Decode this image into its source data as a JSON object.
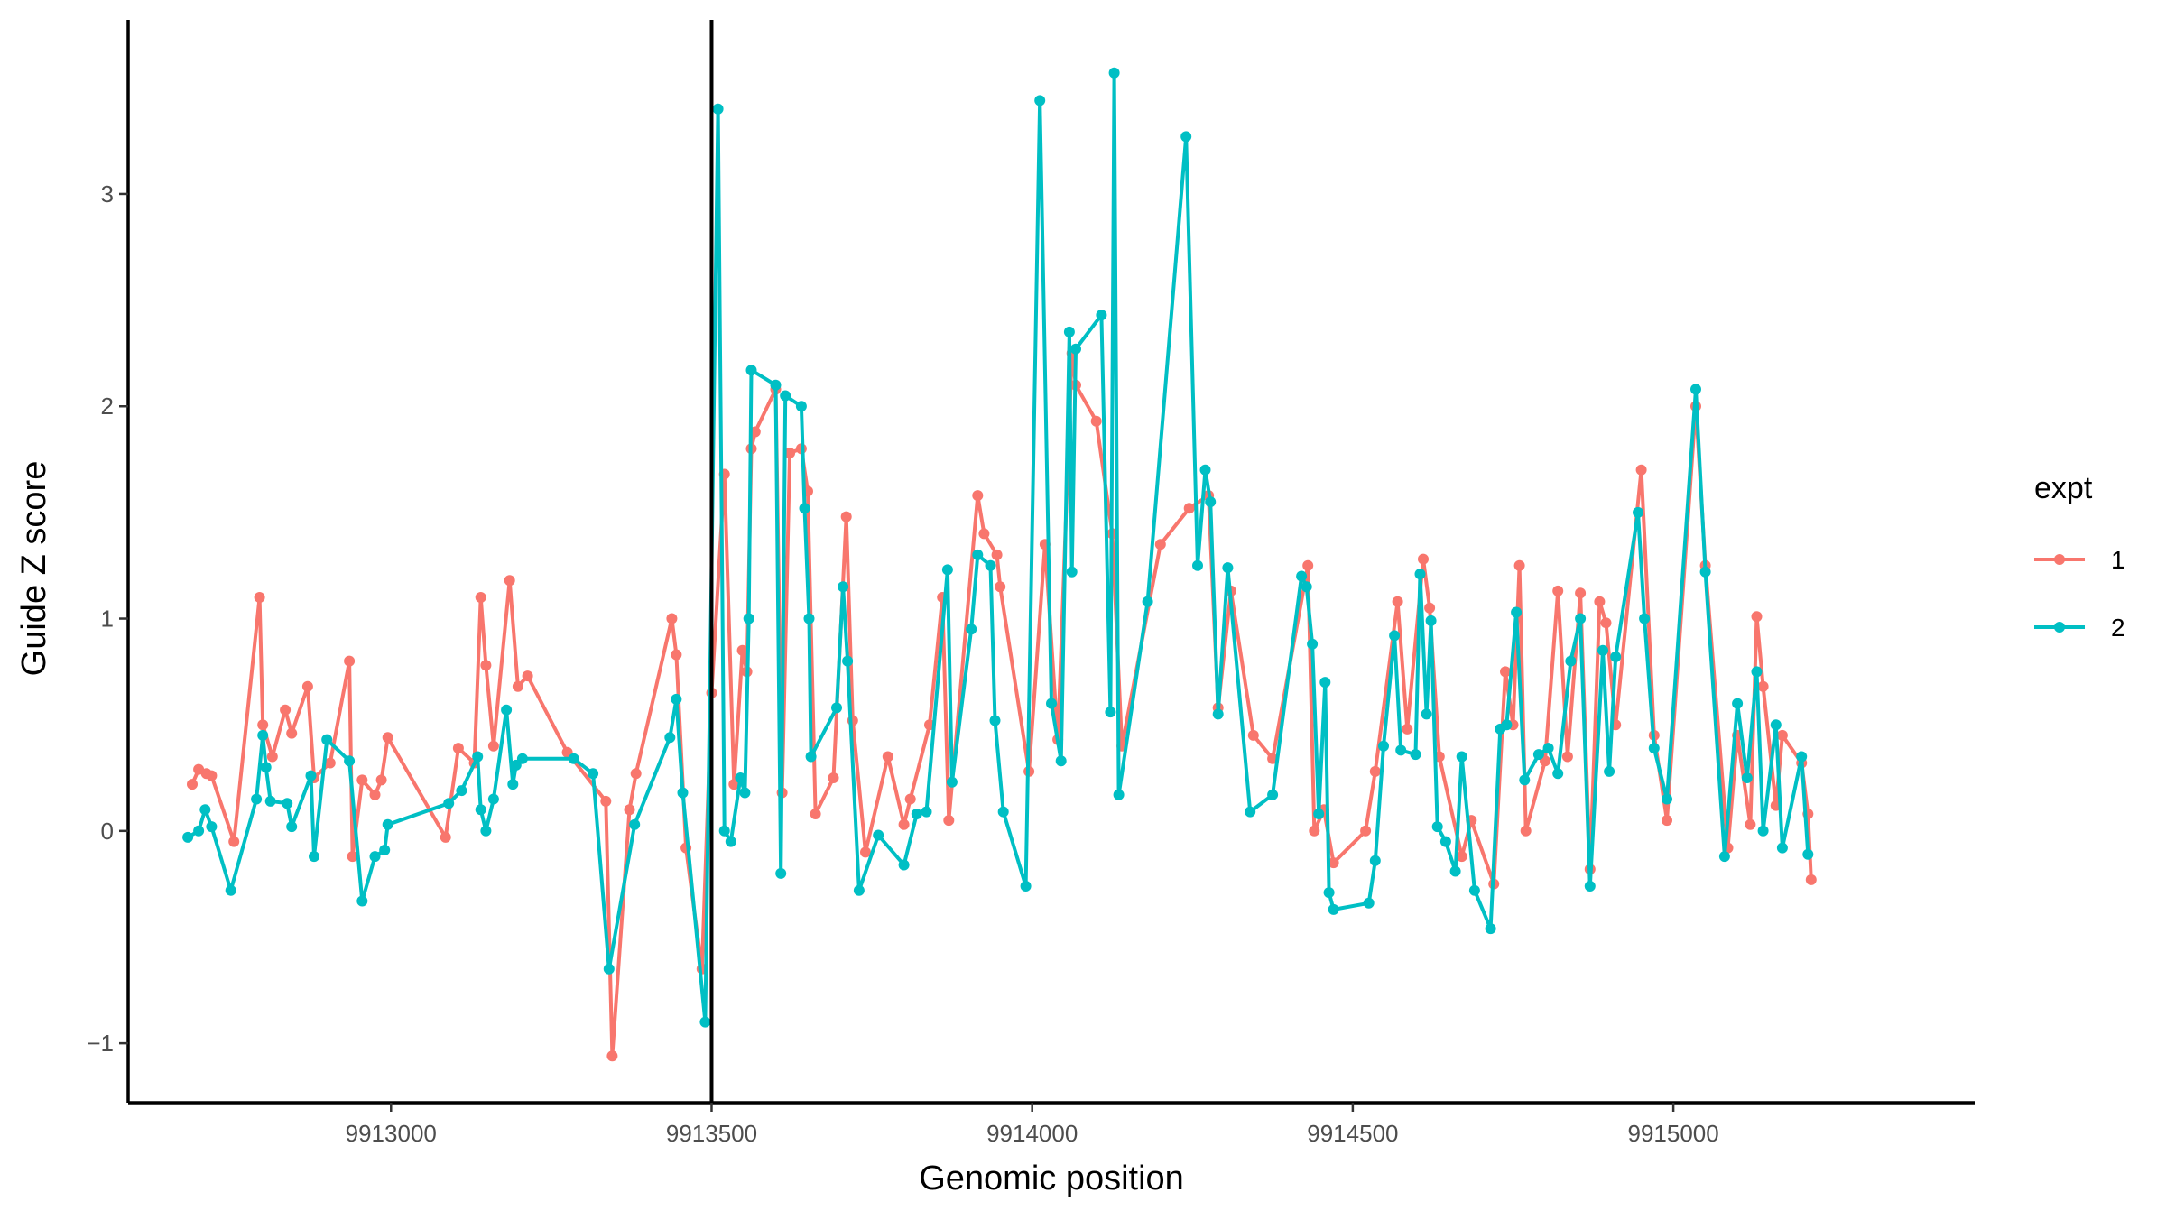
{
  "chart_data": {
    "type": "line",
    "xlabel": "Genomic position",
    "ylabel": "Guide Z score",
    "xlim": [
      9912590,
      9915470
    ],
    "ylim": [
      -1.28,
      3.82
    ],
    "x_ticks": [
      9913000,
      9913500,
      9914000,
      9914500,
      9915000
    ],
    "x_tick_labels": [
      "9913000",
      "9913500",
      "9914000",
      "9914500",
      "9915000"
    ],
    "y_ticks": [
      -1,
      0,
      1,
      2,
      3
    ],
    "y_tick_labels": [
      "−1",
      "0",
      "1",
      "2",
      "3"
    ],
    "vline_x": 9913500,
    "grid": false,
    "legend": {
      "title": "expt",
      "position": "right"
    },
    "series": [
      {
        "name": "1",
        "color": "#F8766D",
        "points": [
          [
            9912690,
            0.22
          ],
          [
            9912700,
            0.29
          ],
          [
            9912712,
            0.27
          ],
          [
            9912720,
            0.26
          ],
          [
            9912755,
            -0.05
          ],
          [
            9912795,
            1.1
          ],
          [
            9912800,
            0.5
          ],
          [
            9912815,
            0.35
          ],
          [
            9912835,
            0.57
          ],
          [
            9912845,
            0.46
          ],
          [
            9912870,
            0.68
          ],
          [
            9912880,
            0.25
          ],
          [
            9912905,
            0.32
          ],
          [
            9912935,
            0.8
          ],
          [
            9912940,
            -0.12
          ],
          [
            9912955,
            0.24
          ],
          [
            9912975,
            0.17
          ],
          [
            9912985,
            0.24
          ],
          [
            9912995,
            0.44
          ],
          [
            9913085,
            -0.03
          ],
          [
            9913105,
            0.39
          ],
          [
            9913130,
            0.32
          ],
          [
            9913140,
            1.1
          ],
          [
            9913148,
            0.78
          ],
          [
            9913160,
            0.4
          ],
          [
            9913185,
            1.18
          ],
          [
            9913198,
            0.68
          ],
          [
            9913213,
            0.73
          ],
          [
            9913275,
            0.37
          ],
          [
            9913335,
            0.14
          ],
          [
            9913345,
            -1.06
          ],
          [
            9913372,
            0.1
          ],
          [
            9913382,
            0.27
          ],
          [
            9913438,
            1.0
          ],
          [
            9913445,
            0.83
          ],
          [
            9913460,
            -0.08
          ],
          [
            9913485,
            -0.65
          ],
          [
            9913500,
            0.65
          ],
          [
            9913520,
            1.68
          ],
          [
            9913535,
            0.22
          ],
          [
            9913548,
            0.85
          ],
          [
            9913555,
            0.75
          ],
          [
            9913562,
            1.8
          ],
          [
            9913568,
            1.88
          ],
          [
            9913600,
            2.08
          ],
          [
            9913610,
            0.18
          ],
          [
            9913622,
            1.78
          ],
          [
            9913640,
            1.8
          ],
          [
            9913650,
            1.6
          ],
          [
            9913662,
            0.08
          ],
          [
            9913690,
            0.25
          ],
          [
            9913710,
            1.48
          ],
          [
            9913720,
            0.52
          ],
          [
            9913740,
            -0.1
          ],
          [
            9913775,
            0.35
          ],
          [
            9913800,
            0.03
          ],
          [
            9913810,
            0.15
          ],
          [
            9913840,
            0.5
          ],
          [
            9913860,
            1.1
          ],
          [
            9913870,
            0.05
          ],
          [
            9913915,
            1.58
          ],
          [
            9913925,
            1.4
          ],
          [
            9913945,
            1.3
          ],
          [
            9913950,
            1.15
          ],
          [
            9913995,
            0.28
          ],
          [
            9914020,
            1.35
          ],
          [
            9914040,
            0.43
          ],
          [
            9914062,
            2.25
          ],
          [
            9914068,
            2.1
          ],
          [
            9914100,
            1.93
          ],
          [
            9914125,
            1.4
          ],
          [
            9914140,
            0.4
          ],
          [
            9914200,
            1.35
          ],
          [
            9914245,
            1.52
          ],
          [
            9914275,
            1.58
          ],
          [
            9914290,
            0.58
          ],
          [
            9914310,
            1.13
          ],
          [
            9914345,
            0.45
          ],
          [
            9914375,
            0.34
          ],
          [
            9914430,
            1.25
          ],
          [
            9914440,
            0.0
          ],
          [
            9914455,
            0.1
          ],
          [
            9914470,
            -0.15
          ],
          [
            9914520,
            0.0
          ],
          [
            9914535,
            0.28
          ],
          [
            9914570,
            1.08
          ],
          [
            9914585,
            0.48
          ],
          [
            9914610,
            1.28
          ],
          [
            9914620,
            1.05
          ],
          [
            9914635,
            0.35
          ],
          [
            9914670,
            -0.12
          ],
          [
            9914685,
            0.05
          ],
          [
            9914720,
            -0.25
          ],
          [
            9914738,
            0.75
          ],
          [
            9914750,
            0.5
          ],
          [
            9914760,
            1.25
          ],
          [
            9914770,
            0.0
          ],
          [
            9914800,
            0.33
          ],
          [
            9914820,
            1.13
          ],
          [
            9914835,
            0.35
          ],
          [
            9914855,
            1.12
          ],
          [
            9914870,
            -0.18
          ],
          [
            9914885,
            1.08
          ],
          [
            9914895,
            0.98
          ],
          [
            9914910,
            0.5
          ],
          [
            9914950,
            1.7
          ],
          [
            9914970,
            0.45
          ],
          [
            9914990,
            0.05
          ],
          [
            9915035,
            2.0
          ],
          [
            9915050,
            1.25
          ],
          [
            9915085,
            -0.08
          ],
          [
            9915100,
            0.45
          ],
          [
            9915120,
            0.03
          ],
          [
            9915130,
            1.01
          ],
          [
            9915140,
            0.68
          ],
          [
            9915160,
            0.12
          ],
          [
            9915170,
            0.45
          ],
          [
            9915200,
            0.32
          ],
          [
            9915210,
            0.08
          ],
          [
            9915215,
            -0.23
          ]
        ]
      },
      {
        "name": "2",
        "color": "#00BFC4",
        "points": [
          [
            9912683,
            -0.03
          ],
          [
            9912700,
            0.0
          ],
          [
            9912710,
            0.1
          ],
          [
            9912720,
            0.02
          ],
          [
            9912750,
            -0.28
          ],
          [
            9912790,
            0.15
          ],
          [
            9912800,
            0.45
          ],
          [
            9912805,
            0.3
          ],
          [
            9912812,
            0.14
          ],
          [
            9912838,
            0.13
          ],
          [
            9912845,
            0.02
          ],
          [
            9912875,
            0.26
          ],
          [
            9912880,
            -0.12
          ],
          [
            9912900,
            0.43
          ],
          [
            9912935,
            0.33
          ],
          [
            9912955,
            -0.33
          ],
          [
            9912975,
            -0.12
          ],
          [
            9912990,
            -0.09
          ],
          [
            9912995,
            0.03
          ],
          [
            9913090,
            0.13
          ],
          [
            9913110,
            0.19
          ],
          [
            9913135,
            0.35
          ],
          [
            9913140,
            0.1
          ],
          [
            9913148,
            0.0
          ],
          [
            9913160,
            0.15
          ],
          [
            9913180,
            0.57
          ],
          [
            9913190,
            0.22
          ],
          [
            9913195,
            0.31
          ],
          [
            9913205,
            0.34
          ],
          [
            9913285,
            0.34
          ],
          [
            9913315,
            0.27
          ],
          [
            9913340,
            -0.65
          ],
          [
            9913380,
            0.03
          ],
          [
            9913435,
            0.44
          ],
          [
            9913445,
            0.62
          ],
          [
            9913455,
            0.18
          ],
          [
            9913490,
            -0.9
          ],
          [
            9913510,
            3.4
          ],
          [
            9913520,
            0.0
          ],
          [
            9913530,
            -0.05
          ],
          [
            9913545,
            0.25
          ],
          [
            9913552,
            0.18
          ],
          [
            9913558,
            1.0
          ],
          [
            9913562,
            2.17
          ],
          [
            9913600,
            2.1
          ],
          [
            9913608,
            -0.2
          ],
          [
            9913615,
            2.05
          ],
          [
            9913640,
            2.0
          ],
          [
            9913645,
            1.52
          ],
          [
            9913652,
            1.0
          ],
          [
            9913655,
            0.35
          ],
          [
            9913695,
            0.58
          ],
          [
            9913705,
            1.15
          ],
          [
            9913712,
            0.8
          ],
          [
            9913730,
            -0.28
          ],
          [
            9913760,
            -0.02
          ],
          [
            9913800,
            -0.16
          ],
          [
            9913820,
            0.08
          ],
          [
            9913835,
            0.09
          ],
          [
            9913868,
            1.23
          ],
          [
            9913875,
            0.23
          ],
          [
            9913905,
            0.95
          ],
          [
            9913915,
            1.3
          ],
          [
            9913935,
            1.25
          ],
          [
            9913942,
            0.52
          ],
          [
            9913955,
            0.09
          ],
          [
            9913990,
            -0.26
          ],
          [
            9914012,
            3.44
          ],
          [
            9914030,
            0.6
          ],
          [
            9914045,
            0.33
          ],
          [
            9914058,
            2.35
          ],
          [
            9914062,
            1.22
          ],
          [
            9914068,
            2.27
          ],
          [
            9914108,
            2.43
          ],
          [
            9914122,
            0.56
          ],
          [
            9914128,
            3.57
          ],
          [
            9914135,
            0.17
          ],
          [
            9914180,
            1.08
          ],
          [
            9914240,
            3.27
          ],
          [
            9914258,
            1.25
          ],
          [
            9914270,
            1.7
          ],
          [
            9914278,
            1.55
          ],
          [
            9914290,
            0.55
          ],
          [
            9914305,
            1.24
          ],
          [
            9914340,
            0.09
          ],
          [
            9914375,
            0.17
          ],
          [
            9914420,
            1.2
          ],
          [
            9914428,
            1.15
          ],
          [
            9914437,
            0.88
          ],
          [
            9914447,
            0.08
          ],
          [
            9914457,
            0.7
          ],
          [
            9914463,
            -0.29
          ],
          [
            9914470,
            -0.37
          ],
          [
            9914525,
            -0.34
          ],
          [
            9914535,
            -0.14
          ],
          [
            9914548,
            0.4
          ],
          [
            9914565,
            0.92
          ],
          [
            9914575,
            0.38
          ],
          [
            9914598,
            0.36
          ],
          [
            9914605,
            1.21
          ],
          [
            9914615,
            0.55
          ],
          [
            9914622,
            0.99
          ],
          [
            9914632,
            0.02
          ],
          [
            9914645,
            -0.05
          ],
          [
            9914660,
            -0.19
          ],
          [
            9914670,
            0.35
          ],
          [
            9914690,
            -0.28
          ],
          [
            9914715,
            -0.46
          ],
          [
            9914730,
            0.48
          ],
          [
            9914740,
            0.5
          ],
          [
            9914755,
            1.03
          ],
          [
            9914768,
            0.24
          ],
          [
            9914790,
            0.36
          ],
          [
            9914805,
            0.39
          ],
          [
            9914820,
            0.27
          ],
          [
            9914840,
            0.8
          ],
          [
            9914855,
            1.0
          ],
          [
            9914870,
            -0.26
          ],
          [
            9914890,
            0.85
          ],
          [
            9914900,
            0.28
          ],
          [
            9914910,
            0.82
          ],
          [
            9914945,
            1.5
          ],
          [
            9914955,
            1.0
          ],
          [
            9914970,
            0.39
          ],
          [
            9914990,
            0.15
          ],
          [
            9915035,
            2.08
          ],
          [
            9915050,
            1.22
          ],
          [
            9915080,
            -0.12
          ],
          [
            9915100,
            0.6
          ],
          [
            9915115,
            0.25
          ],
          [
            9915130,
            0.75
          ],
          [
            9915140,
            0.0
          ],
          [
            9915160,
            0.5
          ],
          [
            9915170,
            -0.08
          ],
          [
            9915200,
            0.35
          ],
          [
            9915210,
            -0.11
          ]
        ]
      }
    ]
  }
}
